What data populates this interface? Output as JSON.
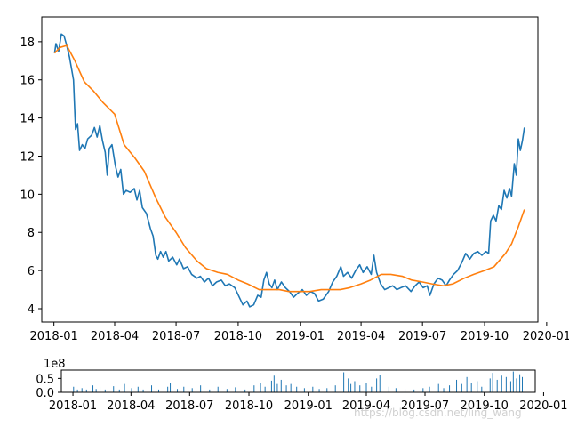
{
  "chart_data": [
    {
      "type": "line",
      "x_ticks": [
        "2018-01",
        "2018-04",
        "2018-07",
        "2018-10",
        "2019-01",
        "2019-04",
        "2019-07",
        "2019-10",
        "2020-01"
      ],
      "y_ticks": [
        "4",
        "6",
        "8",
        "10",
        "12",
        "14",
        "16",
        "18"
      ],
      "xlim": [
        "2017-12-14",
        "2019-12-19"
      ],
      "ylim": [
        3.3,
        19.3
      ],
      "grid": false,
      "series": [
        {
          "color": "#1f77b4",
          "points": [
            [
              "2018-01-02",
              17.4
            ],
            [
              "2018-01-04",
              17.9
            ],
            [
              "2018-01-08",
              17.5
            ],
            [
              "2018-01-12",
              18.4
            ],
            [
              "2018-01-16",
              18.3
            ],
            [
              "2018-01-20",
              17.8
            ],
            [
              "2018-01-24",
              17.2
            ],
            [
              "2018-01-30",
              16.0
            ],
            [
              "2018-02-02",
              13.4
            ],
            [
              "2018-02-05",
              13.7
            ],
            [
              "2018-02-08",
              12.3
            ],
            [
              "2018-02-12",
              12.6
            ],
            [
              "2018-02-16",
              12.4
            ],
            [
              "2018-02-20",
              12.9
            ],
            [
              "2018-02-26",
              13.1
            ],
            [
              "2018-03-02",
              13.5
            ],
            [
              "2018-03-06",
              13.0
            ],
            [
              "2018-03-10",
              13.6
            ],
            [
              "2018-03-14",
              12.8
            ],
            [
              "2018-03-18",
              12.2
            ],
            [
              "2018-03-21",
              11.0
            ],
            [
              "2018-03-24",
              12.4
            ],
            [
              "2018-03-28",
              12.6
            ],
            [
              "2018-04-02",
              11.5
            ],
            [
              "2018-04-06",
              10.9
            ],
            [
              "2018-04-10",
              11.3
            ],
            [
              "2018-04-14",
              10.0
            ],
            [
              "2018-04-18",
              10.2
            ],
            [
              "2018-04-24",
              10.1
            ],
            [
              "2018-04-30",
              10.3
            ],
            [
              "2018-05-04",
              9.7
            ],
            [
              "2018-05-08",
              10.2
            ],
            [
              "2018-05-12",
              9.3
            ],
            [
              "2018-05-18",
              9.0
            ],
            [
              "2018-05-24",
              8.2
            ],
            [
              "2018-05-28",
              7.8
            ],
            [
              "2018-06-01",
              6.8
            ],
            [
              "2018-06-04",
              6.6
            ],
            [
              "2018-06-08",
              7.0
            ],
            [
              "2018-06-12",
              6.7
            ],
            [
              "2018-06-16",
              7.0
            ],
            [
              "2018-06-20",
              6.5
            ],
            [
              "2018-06-26",
              6.7
            ],
            [
              "2018-07-02",
              6.3
            ],
            [
              "2018-07-06",
              6.6
            ],
            [
              "2018-07-12",
              6.1
            ],
            [
              "2018-07-18",
              6.2
            ],
            [
              "2018-07-24",
              5.8
            ],
            [
              "2018-08-01",
              5.6
            ],
            [
              "2018-08-06",
              5.7
            ],
            [
              "2018-08-12",
              5.4
            ],
            [
              "2018-08-18",
              5.6
            ],
            [
              "2018-08-24",
              5.2
            ],
            [
              "2018-08-30",
              5.4
            ],
            [
              "2018-09-06",
              5.5
            ],
            [
              "2018-09-12",
              5.2
            ],
            [
              "2018-09-18",
              5.3
            ],
            [
              "2018-09-26",
              5.1
            ],
            [
              "2018-10-08",
              4.2
            ],
            [
              "2018-10-14",
              4.4
            ],
            [
              "2018-10-18",
              4.1
            ],
            [
              "2018-10-24",
              4.2
            ],
            [
              "2018-10-30",
              4.7
            ],
            [
              "2018-11-04",
              4.6
            ],
            [
              "2018-11-08",
              5.5
            ],
            [
              "2018-11-12",
              5.9
            ],
            [
              "2018-11-16",
              5.3
            ],
            [
              "2018-11-20",
              5.1
            ],
            [
              "2018-11-24",
              5.5
            ],
            [
              "2018-11-28",
              5.0
            ],
            [
              "2018-12-04",
              5.4
            ],
            [
              "2018-12-10",
              5.1
            ],
            [
              "2018-12-16",
              4.9
            ],
            [
              "2018-12-22",
              4.6
            ],
            [
              "2018-12-28",
              4.8
            ],
            [
              "2019-01-04",
              5.0
            ],
            [
              "2019-01-10",
              4.7
            ],
            [
              "2019-01-16",
              4.9
            ],
            [
              "2019-01-22",
              4.8
            ],
            [
              "2019-01-28",
              4.4
            ],
            [
              "2019-02-04",
              4.5
            ],
            [
              "2019-02-12",
              4.9
            ],
            [
              "2019-02-18",
              5.4
            ],
            [
              "2019-02-24",
              5.7
            ],
            [
              "2019-03-02",
              6.2
            ],
            [
              "2019-03-06",
              5.7
            ],
            [
              "2019-03-12",
              5.9
            ],
            [
              "2019-03-18",
              5.6
            ],
            [
              "2019-03-24",
              6.0
            ],
            [
              "2019-03-30",
              6.3
            ],
            [
              "2019-04-04",
              5.9
            ],
            [
              "2019-04-10",
              6.2
            ],
            [
              "2019-04-16",
              5.8
            ],
            [
              "2019-04-20",
              6.8
            ],
            [
              "2019-04-24",
              5.9
            ],
            [
              "2019-04-30",
              5.3
            ],
            [
              "2019-05-06",
              5.0
            ],
            [
              "2019-05-12",
              5.1
            ],
            [
              "2019-05-18",
              5.2
            ],
            [
              "2019-05-24",
              5.0
            ],
            [
              "2019-05-30",
              5.1
            ],
            [
              "2019-06-06",
              5.2
            ],
            [
              "2019-06-14",
              4.9
            ],
            [
              "2019-06-20",
              5.2
            ],
            [
              "2019-06-26",
              5.4
            ],
            [
              "2019-07-02",
              5.1
            ],
            [
              "2019-07-08",
              5.2
            ],
            [
              "2019-07-12",
              4.7
            ],
            [
              "2019-07-18",
              5.3
            ],
            [
              "2019-07-24",
              5.6
            ],
            [
              "2019-07-30",
              5.5
            ],
            [
              "2019-08-05",
              5.2
            ],
            [
              "2019-08-10",
              5.5
            ],
            [
              "2019-08-16",
              5.8
            ],
            [
              "2019-08-22",
              6.0
            ],
            [
              "2019-08-28",
              6.4
            ],
            [
              "2019-09-03",
              6.9
            ],
            [
              "2019-09-09",
              6.6
            ],
            [
              "2019-09-15",
              6.9
            ],
            [
              "2019-09-21",
              7.0
            ],
            [
              "2019-09-27",
              6.8
            ],
            [
              "2019-10-03",
              7.0
            ],
            [
              "2019-10-07",
              6.9
            ],
            [
              "2019-10-10",
              8.6
            ],
            [
              "2019-10-14",
              8.9
            ],
            [
              "2019-10-18",
              8.6
            ],
            [
              "2019-10-22",
              9.4
            ],
            [
              "2019-10-26",
              9.2
            ],
            [
              "2019-10-30",
              10.2
            ],
            [
              "2019-11-03",
              9.8
            ],
            [
              "2019-11-07",
              10.3
            ],
            [
              "2019-11-10",
              9.9
            ],
            [
              "2019-11-14",
              11.6
            ],
            [
              "2019-11-17",
              11.0
            ],
            [
              "2019-11-20",
              12.9
            ],
            [
              "2019-11-23",
              12.3
            ],
            [
              "2019-11-26",
              12.8
            ],
            [
              "2019-11-29",
              13.5
            ]
          ]
        },
        {
          "color": "#ff7f0e",
          "points": [
            [
              "2018-01-02",
              17.4
            ],
            [
              "2018-01-10",
              17.7
            ],
            [
              "2018-01-20",
              17.8
            ],
            [
              "2018-02-01",
              17.0
            ],
            [
              "2018-02-15",
              15.9
            ],
            [
              "2018-03-01",
              15.4
            ],
            [
              "2018-03-15",
              14.8
            ],
            [
              "2018-04-01",
              14.2
            ],
            [
              "2018-04-15",
              12.6
            ],
            [
              "2018-05-01",
              11.9
            ],
            [
              "2018-05-15",
              11.2
            ],
            [
              "2018-06-01",
              9.8
            ],
            [
              "2018-06-15",
              8.8
            ],
            [
              "2018-07-01",
              8.0
            ],
            [
              "2018-07-15",
              7.2
            ],
            [
              "2018-08-01",
              6.5
            ],
            [
              "2018-08-15",
              6.1
            ],
            [
              "2018-09-01",
              5.9
            ],
            [
              "2018-09-15",
              5.8
            ],
            [
              "2018-10-01",
              5.5
            ],
            [
              "2018-10-15",
              5.3
            ],
            [
              "2018-11-01",
              5.0
            ],
            [
              "2018-11-15",
              5.0
            ],
            [
              "2018-12-01",
              5.0
            ],
            [
              "2018-12-15",
              4.9
            ],
            [
              "2019-01-01",
              4.9
            ],
            [
              "2019-01-15",
              4.9
            ],
            [
              "2019-02-01",
              5.0
            ],
            [
              "2019-02-15",
              5.0
            ],
            [
              "2019-03-01",
              5.0
            ],
            [
              "2019-03-15",
              5.1
            ],
            [
              "2019-04-01",
              5.3
            ],
            [
              "2019-04-15",
              5.5
            ],
            [
              "2019-05-01",
              5.8
            ],
            [
              "2019-05-15",
              5.8
            ],
            [
              "2019-06-01",
              5.7
            ],
            [
              "2019-06-15",
              5.5
            ],
            [
              "2019-07-01",
              5.4
            ],
            [
              "2019-07-15",
              5.3
            ],
            [
              "2019-08-01",
              5.2
            ],
            [
              "2019-08-15",
              5.3
            ],
            [
              "2019-09-01",
              5.6
            ],
            [
              "2019-09-15",
              5.8
            ],
            [
              "2019-10-01",
              6.0
            ],
            [
              "2019-10-15",
              6.2
            ],
            [
              "2019-11-01",
              6.9
            ],
            [
              "2019-11-10",
              7.4
            ],
            [
              "2019-11-20",
              8.3
            ],
            [
              "2019-11-29",
              9.2
            ]
          ]
        }
      ]
    },
    {
      "type": "bar",
      "x_ticks": [
        "2018-01",
        "2018-04",
        "2018-07",
        "2018-10",
        "2019-01",
        "2019-04",
        "2019-07",
        "2019-10",
        "2020-01"
      ],
      "y_ticks": [
        "0.0",
        "0.5"
      ],
      "y_offset_label": "1e8",
      "xlim": [
        "2017-12-14",
        "2019-12-19"
      ],
      "ylim": [
        0,
        0.8
      ],
      "color": "#1f77b4",
      "bars": [
        [
          "2018-01-02",
          0.2
        ],
        [
          "2018-01-08",
          0.1
        ],
        [
          "2018-01-15",
          0.15
        ],
        [
          "2018-01-22",
          0.1
        ],
        [
          "2018-02-01",
          0.25
        ],
        [
          "2018-02-06",
          0.12
        ],
        [
          "2018-02-12",
          0.2
        ],
        [
          "2018-02-20",
          0.1
        ],
        [
          "2018-03-05",
          0.22
        ],
        [
          "2018-03-14",
          0.1
        ],
        [
          "2018-03-22",
          0.3
        ],
        [
          "2018-04-02",
          0.15
        ],
        [
          "2018-04-12",
          0.2
        ],
        [
          "2018-04-20",
          0.1
        ],
        [
          "2018-05-03",
          0.25
        ],
        [
          "2018-05-14",
          0.1
        ],
        [
          "2018-05-28",
          0.2
        ],
        [
          "2018-06-01",
          0.35
        ],
        [
          "2018-06-12",
          0.12
        ],
        [
          "2018-06-22",
          0.2
        ],
        [
          "2018-07-05",
          0.15
        ],
        [
          "2018-07-18",
          0.25
        ],
        [
          "2018-08-01",
          0.1
        ],
        [
          "2018-08-14",
          0.2
        ],
        [
          "2018-08-28",
          0.12
        ],
        [
          "2018-09-10",
          0.18
        ],
        [
          "2018-09-25",
          0.1
        ],
        [
          "2018-10-09",
          0.25
        ],
        [
          "2018-10-19",
          0.35
        ],
        [
          "2018-10-26",
          0.2
        ],
        [
          "2018-11-05",
          0.42
        ],
        [
          "2018-11-09",
          0.6
        ],
        [
          "2018-11-14",
          0.3
        ],
        [
          "2018-11-20",
          0.45
        ],
        [
          "2018-11-28",
          0.25
        ],
        [
          "2018-12-05",
          0.3
        ],
        [
          "2018-12-14",
          0.2
        ],
        [
          "2018-12-26",
          0.15
        ],
        [
          "2019-01-08",
          0.2
        ],
        [
          "2019-01-18",
          0.12
        ],
        [
          "2019-01-30",
          0.15
        ],
        [
          "2019-02-12",
          0.25
        ],
        [
          "2019-02-25",
          0.72
        ],
        [
          "2019-03-04",
          0.5
        ],
        [
          "2019-03-08",
          0.3
        ],
        [
          "2019-03-14",
          0.4
        ],
        [
          "2019-03-22",
          0.25
        ],
        [
          "2019-04-01",
          0.35
        ],
        [
          "2019-04-09",
          0.2
        ],
        [
          "2019-04-17",
          0.5
        ],
        [
          "2019-04-22",
          0.62
        ],
        [
          "2019-05-06",
          0.2
        ],
        [
          "2019-05-17",
          0.15
        ],
        [
          "2019-05-31",
          0.12
        ],
        [
          "2019-06-14",
          0.1
        ],
        [
          "2019-06-28",
          0.15
        ],
        [
          "2019-07-08",
          0.2
        ],
        [
          "2019-07-22",
          0.3
        ],
        [
          "2019-07-30",
          0.15
        ],
        [
          "2019-08-08",
          0.25
        ],
        [
          "2019-08-19",
          0.45
        ],
        [
          "2019-08-27",
          0.3
        ],
        [
          "2019-09-04",
          0.55
        ],
        [
          "2019-09-11",
          0.35
        ],
        [
          "2019-09-20",
          0.4
        ],
        [
          "2019-09-27",
          0.2
        ],
        [
          "2019-10-10",
          0.5
        ],
        [
          "2019-10-14",
          0.7
        ],
        [
          "2019-10-21",
          0.45
        ],
        [
          "2019-10-28",
          0.6
        ],
        [
          "2019-11-04",
          0.55
        ],
        [
          "2019-11-11",
          0.4
        ],
        [
          "2019-11-15",
          0.75
        ],
        [
          "2019-11-20",
          0.5
        ],
        [
          "2019-11-25",
          0.65
        ],
        [
          "2019-11-29",
          0.55
        ]
      ]
    }
  ],
  "watermark": "https://blog.csdn.net/ling_wang"
}
